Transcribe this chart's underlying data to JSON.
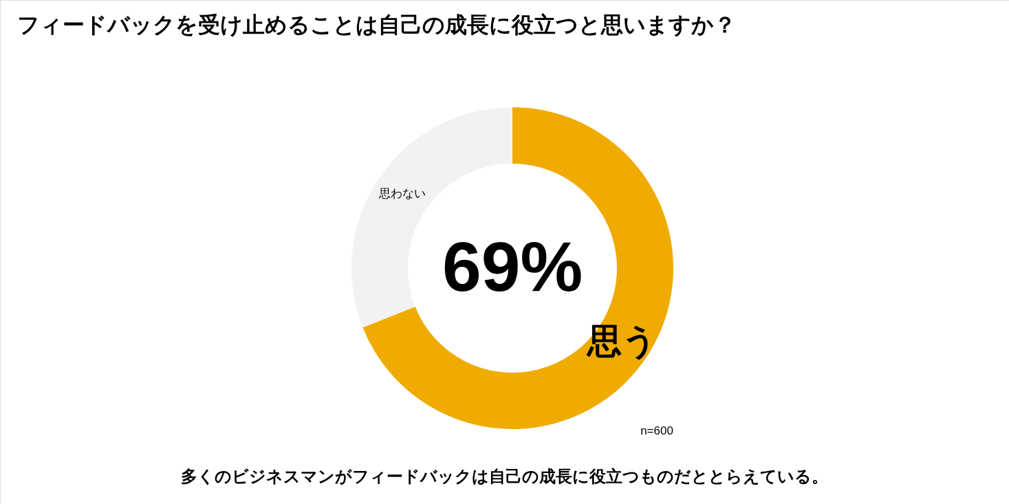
{
  "chart_data": {
    "type": "donut",
    "title": "フィードバックを受け止めることは自己の成長に役立つと思いますか？",
    "categories": [
      "思う",
      "思わない"
    ],
    "values": [
      69,
      31
    ],
    "colors": [
      "#f0ab00",
      "#f2f2f2"
    ],
    "value_labels": [
      "69%",
      null
    ],
    "annotations": [
      "n=600",
      "多くのビジネスマンがフィードバックは自己の成長に役立つものだととらえている。"
    ]
  }
}
